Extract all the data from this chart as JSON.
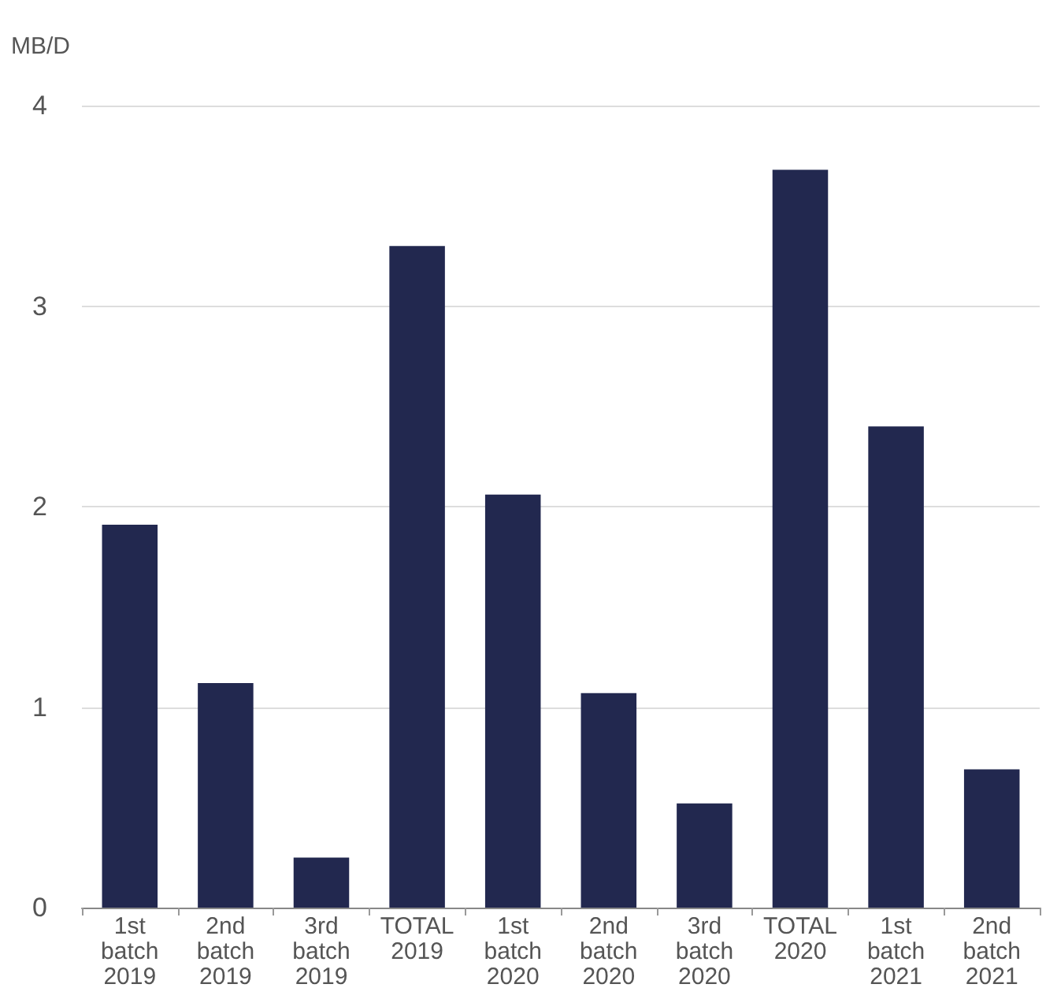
{
  "chart_data": {
    "type": "bar",
    "ylabel": "MB/D",
    "categories": [
      "1st batch 2019",
      "2nd batch 2019",
      "3rd batch 2019",
      "TOTAL 2019",
      "1st batch 2020",
      "2nd batch 2020",
      "3rd batch 2020",
      "TOTAL 2020",
      "1st batch 2021",
      "2nd batch 2021"
    ],
    "values": [
      1.91,
      1.12,
      0.25,
      3.3,
      2.06,
      1.07,
      0.52,
      3.68,
      2.4,
      0.69
    ],
    "color": "#22284f",
    "ylim": [
      0,
      4
    ],
    "yticks": [
      0,
      1,
      2,
      3,
      4
    ],
    "grid": "y"
  }
}
